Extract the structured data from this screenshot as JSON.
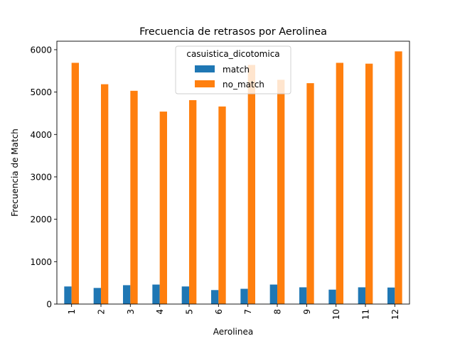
{
  "chart_data": {
    "type": "bar",
    "title": "Frecuencia de retrasos por Aerolinea",
    "xlabel": "Aerolinea",
    "ylabel": "Frecuencia de Match",
    "categories": [
      "1",
      "2",
      "3",
      "4",
      "5",
      "6",
      "7",
      "8",
      "9",
      "10",
      "11",
      "12"
    ],
    "series": [
      {
        "name": "match",
        "color": "#1f77b4",
        "values": [
          415,
          380,
          445,
          460,
          415,
          330,
          360,
          460,
          395,
          340,
          395,
          390
        ]
      },
      {
        "name": "no_match",
        "color": "#ff7f0e",
        "values": [
          5690,
          5185,
          5030,
          4540,
          4810,
          4660,
          5640,
          5290,
          5210,
          5690,
          5670,
          5960
        ]
      }
    ],
    "ylim": [
      0,
      6200
    ],
    "yticks": [
      0,
      1000,
      2000,
      3000,
      4000,
      5000,
      6000
    ],
    "grid": false,
    "legend": {
      "title": "casuistica_dicotomica",
      "placement": "upper-center"
    }
  }
}
